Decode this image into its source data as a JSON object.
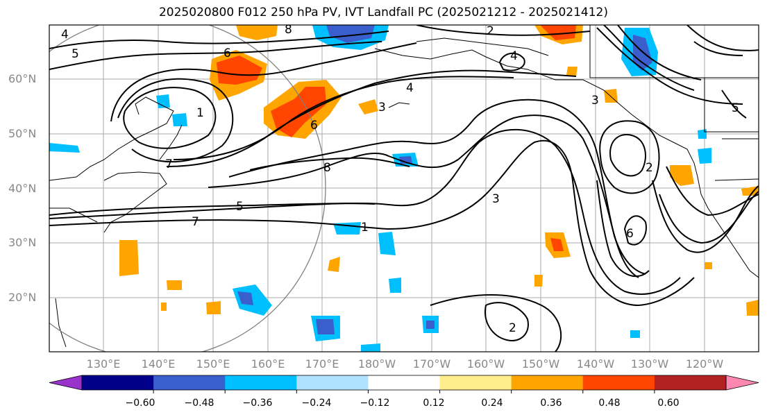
{
  "title": "2025020800 F012 250 hPa PV, IVT Landfall PC (2025021212 - 2025021412)",
  "lat_labels": [
    "60°N",
    "50°N",
    "40°N",
    "30°N",
    "20°N"
  ],
  "lon_labels": [
    "130°E",
    "140°E",
    "150°E",
    "160°E",
    "170°E",
    "180°W",
    "170°W",
    "160°W",
    "150°W",
    "140°W",
    "130°W",
    "120°W"
  ],
  "colorbar": {
    "colors": [
      "#9933cc",
      "#00008b",
      "#3a5fcd",
      "#00bfff",
      "#b0e2ff",
      "#ffffff",
      "#ffec8b",
      "#ffa500",
      "#ff4500",
      "#b22222",
      "#ff88b0"
    ],
    "tick_labels": [
      "−0.60",
      "−0.48",
      "−0.36",
      "−0.24",
      "−0.12",
      "0.12",
      "0.24",
      "0.36",
      "0.48",
      "0.60"
    ]
  },
  "contour_labels": [
    "4",
    "5",
    "6",
    "7",
    "8",
    "2",
    "3",
    "1",
    "4",
    "5",
    "6",
    "7",
    "8",
    "3",
    "2",
    "1",
    "6",
    "2",
    "3",
    "4",
    "5"
  ],
  "colors": {
    "grid": "#aaaaaa",
    "contour": "#000000",
    "circle": "#808080",
    "axis_text": "#888888"
  }
}
